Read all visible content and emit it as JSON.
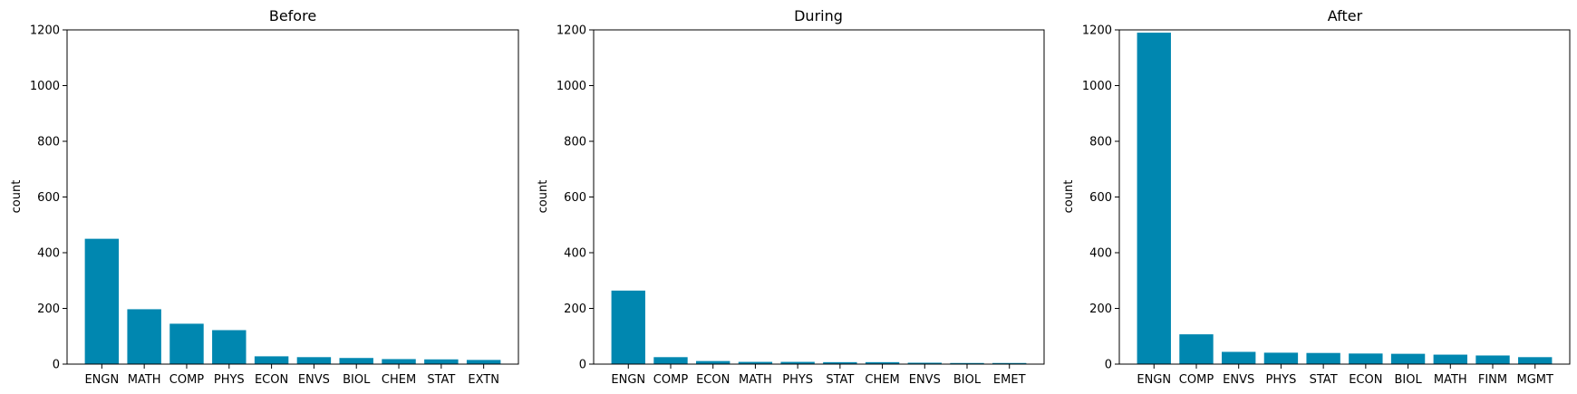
{
  "accent_color": "#0087b0",
  "chart_data": [
    {
      "type": "bar",
      "title": "Before",
      "xlabel": "",
      "ylabel": "count",
      "ylim": [
        0,
        1200
      ],
      "yticks": [
        0,
        200,
        400,
        600,
        800,
        1000,
        1200
      ],
      "grid": false,
      "categories": [
        "ENGN",
        "MATH",
        "COMP",
        "PHYS",
        "ECON",
        "ENVS",
        "BIOL",
        "CHEM",
        "STAT",
        "EXTN"
      ],
      "values": [
        450,
        197,
        145,
        122,
        28,
        25,
        22,
        18,
        17,
        15
      ]
    },
    {
      "type": "bar",
      "title": "During",
      "xlabel": "",
      "ylabel": "count",
      "ylim": [
        0,
        1200
      ],
      "yticks": [
        0,
        200,
        400,
        600,
        800,
        1000,
        1200
      ],
      "grid": false,
      "categories": [
        "ENGN",
        "COMP",
        "ECON",
        "MATH",
        "PHYS",
        "STAT",
        "CHEM",
        "ENVS",
        "BIOL",
        "EMET"
      ],
      "values": [
        264,
        25,
        11,
        8,
        8,
        7,
        7,
        5,
        4,
        4
      ]
    },
    {
      "type": "bar",
      "title": "After",
      "xlabel": "",
      "ylabel": "count",
      "ylim": [
        0,
        1200
      ],
      "yticks": [
        0,
        200,
        400,
        600,
        800,
        1000,
        1200
      ],
      "grid": false,
      "categories": [
        "ENGN",
        "COMP",
        "ENVS",
        "PHYS",
        "STAT",
        "ECON",
        "BIOL",
        "MATH",
        "FINM",
        "MGMT"
      ],
      "values": [
        1190,
        107,
        44,
        41,
        40,
        38,
        37,
        34,
        31,
        25
      ]
    }
  ]
}
